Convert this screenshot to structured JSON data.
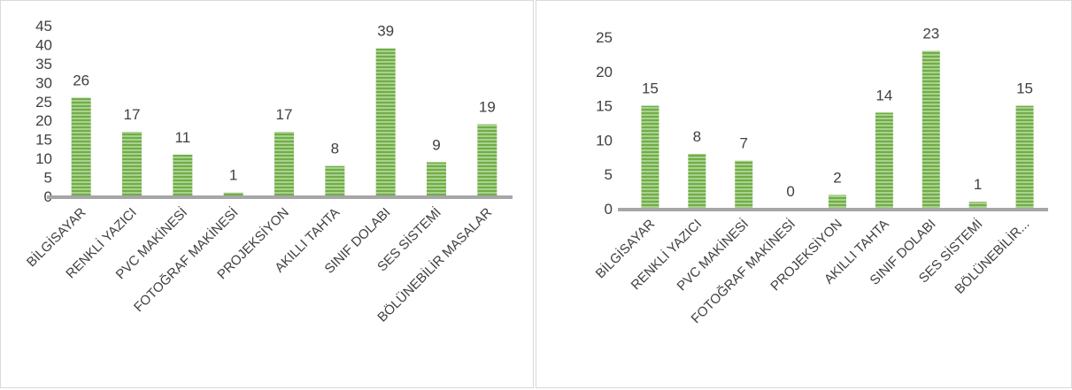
{
  "chart_data": [
    {
      "type": "bar",
      "categories": [
        "BİLGİSAYAR",
        "RENKLİ YAZICI",
        "PVC MAKİNESİ",
        "FOTOĞRAF MAKİNESİ",
        "PROJEKSİYON",
        "AKILLI TAHTA",
        "SINIF DOLABI",
        "SES SİSTEMİ",
        "BÖLÜNEBİLİR MASALAR"
      ],
      "values": [
        26,
        17,
        11,
        1,
        17,
        8,
        39,
        9,
        19
      ],
      "ylim": [
        0,
        45
      ],
      "yticks": [
        "0",
        "5",
        "10",
        "15",
        "20",
        "25",
        "30",
        "35",
        "40",
        "45"
      ],
      "data_labels": [
        "26",
        "17",
        "11",
        "1",
        "17",
        "8",
        "39",
        "9",
        "19"
      ],
      "grid": false,
      "bar_color": "#70ad47",
      "title": "",
      "xlabel": "",
      "ylabel": ""
    },
    {
      "type": "bar",
      "categories": [
        "BİLGİSAYAR",
        "RENKLİ YAZICI",
        "PVC MAKİNESİ",
        "FOTOĞRAF MAKİNESİ",
        "PROJEKSİYON",
        "AKILLI TAHTA",
        "SINIF DOLABI",
        "SES SİSTEMİ",
        "BÖLÜNEBİLİR..."
      ],
      "values": [
        15,
        8,
        7,
        0,
        2,
        14,
        23,
        1,
        15
      ],
      "ylim": [
        0,
        25
      ],
      "yticks": [
        "0",
        "5",
        "10",
        "15",
        "20",
        "25"
      ],
      "data_labels": [
        "15",
        "8",
        "7",
        "0",
        "2",
        "14",
        "23",
        "1",
        "15"
      ],
      "grid": false,
      "bar_color": "#70ad47",
      "title": "",
      "xlabel": "",
      "ylabel": ""
    }
  ]
}
